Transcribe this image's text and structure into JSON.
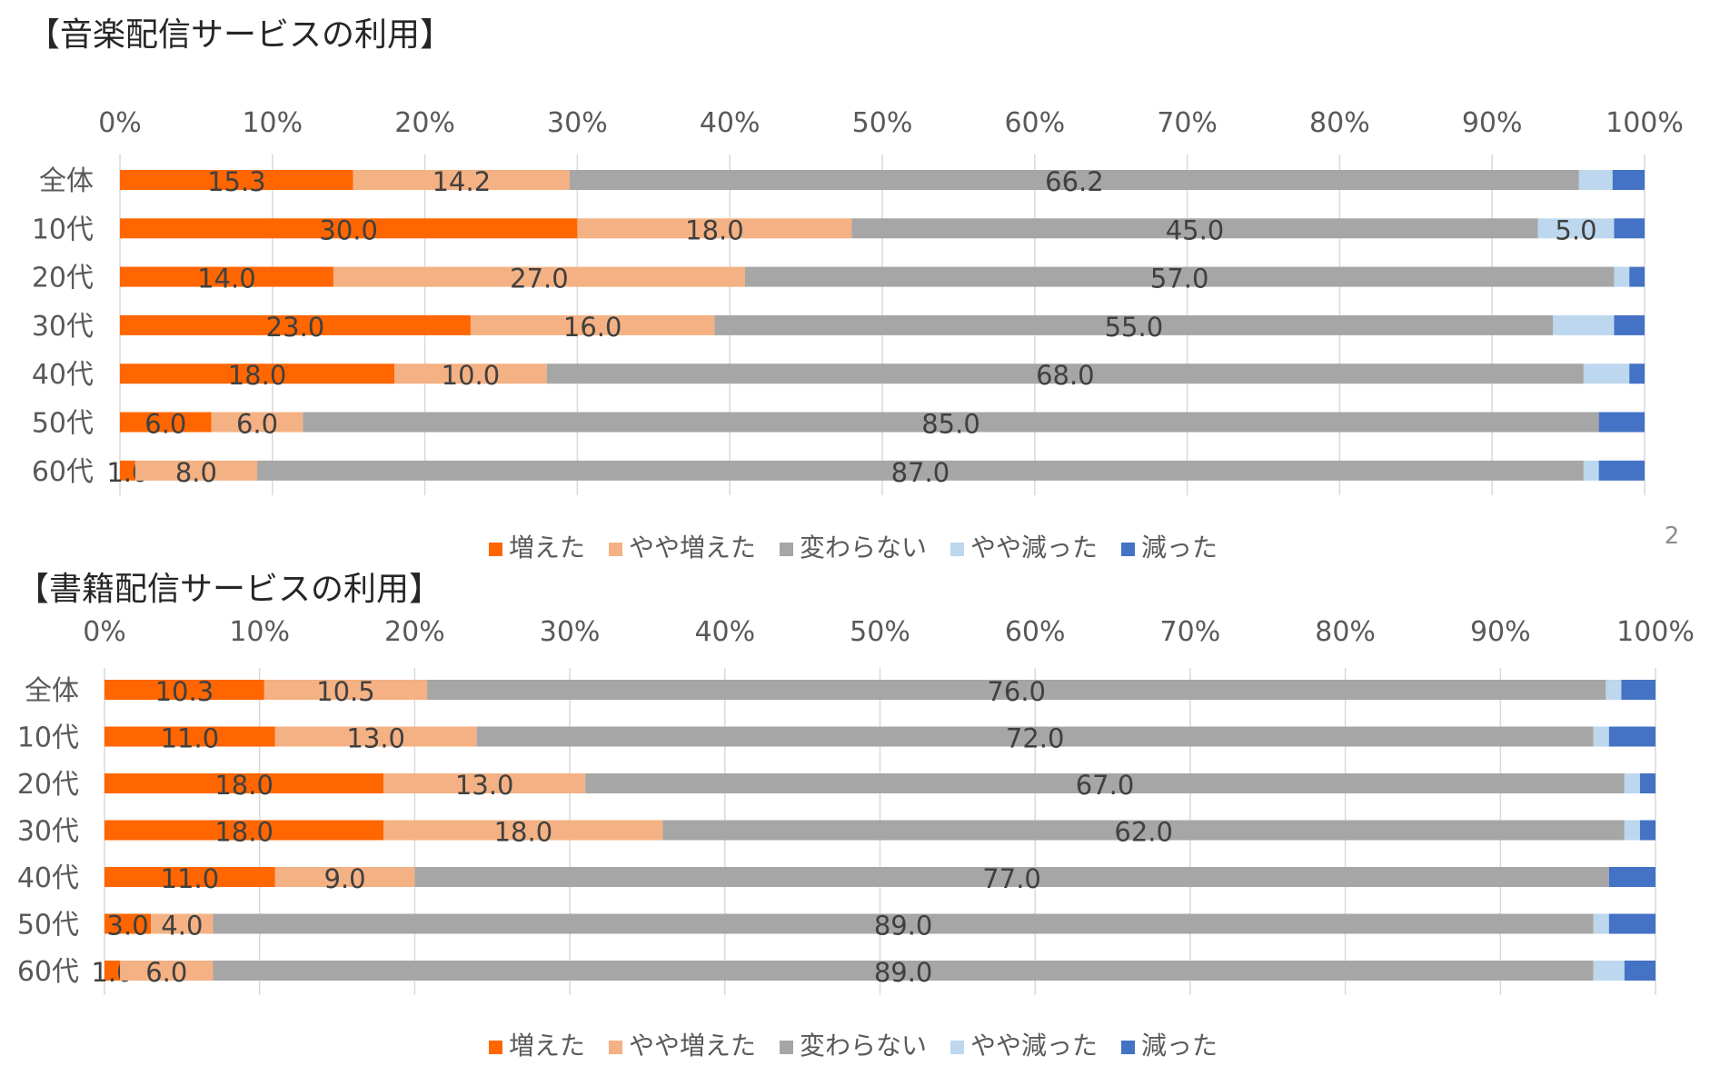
{
  "page_number": "2",
  "legend_labels": [
    "増えた",
    "やや増えた",
    "変わらない",
    "やや減った",
    "減った"
  ],
  "colors": [
    "#FF6600",
    "#F4B183",
    "#A6A6A6",
    "#BDD7EE",
    "#4472C4"
  ],
  "chart_data": [
    {
      "type": "bar",
      "orientation": "horizontal",
      "stacked": "percent",
      "title": "【音楽配信サービスの利用】",
      "categories": [
        "全体",
        "10代",
        "20代",
        "30代",
        "40代",
        "50代",
        "60代"
      ],
      "x_ticks": [
        "0%",
        "10%",
        "20%",
        "30%",
        "40%",
        "50%",
        "60%",
        "70%",
        "80%",
        "90%",
        "100%"
      ],
      "xlim": [
        0,
        100
      ],
      "grid": true,
      "legend_position": "bottom",
      "series": [
        {
          "name": "増えた",
          "values": [
            15.3,
            30.0,
            14.0,
            23.0,
            18.0,
            6.0,
            1.0
          ],
          "labels": [
            "15.3",
            "30.0",
            "14.0",
            "23.0",
            "18.0",
            "6.0",
            "1.0"
          ]
        },
        {
          "name": "やや増えた",
          "values": [
            14.2,
            18.0,
            27.0,
            16.0,
            10.0,
            6.0,
            8.0
          ],
          "labels": [
            "14.2",
            "18.0",
            "27.0",
            "16.0",
            "10.0",
            "6.0",
            "8.0"
          ]
        },
        {
          "name": "変わらない",
          "values": [
            66.2,
            45.0,
            57.0,
            55.0,
            68.0,
            85.0,
            87.0
          ],
          "labels": [
            "66.2",
            "45.0",
            "57.0",
            "55.0",
            "68.0",
            "85.0",
            "87.0"
          ]
        },
        {
          "name": "やや減った",
          "values": [
            2.2,
            5.0,
            1.0,
            4.0,
            3.0,
            0.0,
            1.0
          ],
          "labels": [
            "",
            "5.0",
            "",
            "",
            "",
            "",
            ""
          ]
        },
        {
          "name": "減った",
          "values": [
            2.1,
            2.0,
            1.0,
            2.0,
            1.0,
            3.0,
            3.0
          ],
          "labels": [
            "",
            "",
            "",
            "",
            "",
            "",
            ""
          ]
        }
      ]
    },
    {
      "type": "bar",
      "orientation": "horizontal",
      "stacked": "percent",
      "title": "【書籍配信サービスの利用】",
      "categories": [
        "全体",
        "10代",
        "20代",
        "30代",
        "40代",
        "50代",
        "60代"
      ],
      "x_ticks": [
        "0%",
        "10%",
        "20%",
        "30%",
        "40%",
        "50%",
        "60%",
        "70%",
        "80%",
        "90%",
        "100%"
      ],
      "xlim": [
        0,
        100
      ],
      "grid": true,
      "legend_position": "bottom",
      "series": [
        {
          "name": "増えた",
          "values": [
            10.3,
            11.0,
            18.0,
            18.0,
            11.0,
            3.0,
            1.0
          ],
          "labels": [
            "10.3",
            "11.0",
            "18.0",
            "18.0",
            "11.0",
            "3.0",
            "1.0"
          ]
        },
        {
          "name": "やや増えた",
          "values": [
            10.5,
            13.0,
            13.0,
            18.0,
            9.0,
            4.0,
            6.0
          ],
          "labels": [
            "10.5",
            "13.0",
            "13.0",
            "18.0",
            "9.0",
            "4.0",
            "6.0"
          ]
        },
        {
          "name": "変わらない",
          "values": [
            76.0,
            72.0,
            67.0,
            62.0,
            77.0,
            89.0,
            89.0
          ],
          "labels": [
            "76.0",
            "72.0",
            "67.0",
            "62.0",
            "77.0",
            "89.0",
            "89.0"
          ]
        },
        {
          "name": "やや減った",
          "values": [
            1.0,
            1.0,
            1.0,
            1.0,
            0.0,
            1.0,
            2.0
          ],
          "labels": [
            "",
            "",
            "",
            "",
            "",
            "",
            ""
          ]
        },
        {
          "name": "減った",
          "values": [
            2.2,
            3.0,
            1.0,
            1.0,
            3.0,
            3.0,
            2.0
          ],
          "labels": [
            "",
            "",
            "",
            "",
            "",
            "",
            ""
          ]
        }
      ]
    }
  ]
}
